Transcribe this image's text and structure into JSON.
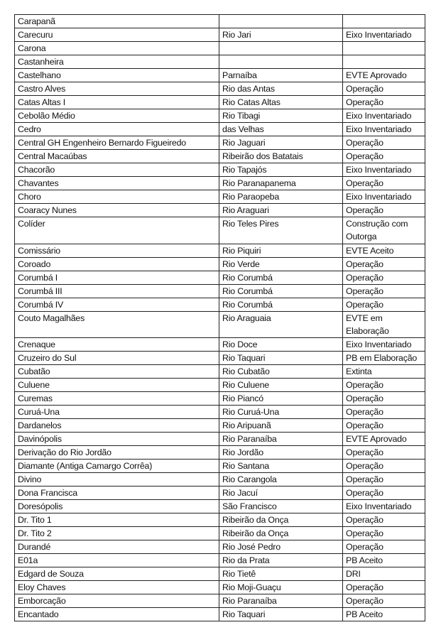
{
  "table": {
    "rows": [
      [
        "Carapanã",
        "",
        ""
      ],
      [
        "Carecuru",
        "Rio Jari",
        "Eixo Inventariado"
      ],
      [
        "Carona",
        "",
        ""
      ],
      [
        "Castanheira",
        "",
        ""
      ],
      [
        "Castelhano",
        "Parnaíba",
        "EVTE Aprovado"
      ],
      [
        "Castro Alves",
        "Rio das Antas",
        "Operação"
      ],
      [
        "Catas Altas I",
        "Rio Catas Altas",
        "Operação"
      ],
      [
        "Cebolão Médio",
        "Rio Tibagi",
        "Eixo Inventariado"
      ],
      [
        "Cedro",
        "das Velhas",
        "Eixo Inventariado"
      ],
      [
        "Central GH Engenheiro Bernardo Figueiredo",
        "Rio Jaguari",
        "Operação"
      ],
      [
        "Central Macaúbas",
        "Ribeirão dos Batatais",
        "Operação"
      ],
      [
        "Chacorão",
        "Rio Tapajós",
        "Eixo Inventariado"
      ],
      [
        "Chavantes",
        "Rio Paranapanema",
        "Operação"
      ],
      [
        "Choro",
        "Rio Paraopeba",
        "Eixo Inventariado"
      ],
      [
        "Coaracy Nunes",
        "Rio Araguari",
        "Operação"
      ],
      [
        "Colíder",
        "Rio Teles Pires",
        "Construção com Outorga"
      ],
      [
        "Comissário",
        "Rio Piquiri",
        "EVTE Aceito"
      ],
      [
        "Coroado",
        "Rio Verde",
        "Operação"
      ],
      [
        "Corumbá I",
        "Rio Corumbá",
        "Operação"
      ],
      [
        "Corumbá III",
        "Rio Corumbá",
        "Operação"
      ],
      [
        "Corumbá IV",
        "Rio Corumbá",
        "Operação"
      ],
      [
        "Couto Magalhães",
        "Rio Araguaia",
        "EVTE em Elaboração"
      ],
      [
        "Crenaque",
        "Rio Doce",
        "Eixo Inventariado"
      ],
      [
        "Cruzeiro do Sul",
        "Rio Taquari",
        "PB em Elaboração"
      ],
      [
        "Cubatão",
        "Rio Cubatão",
        "Extinta"
      ],
      [
        "Culuene",
        "Rio Culuene",
        "Operação"
      ],
      [
        "Curemas",
        "Rio Piancó",
        "Operação"
      ],
      [
        "Curuá-Una",
        "Rio Curuá-Una",
        "Operação"
      ],
      [
        "Dardanelos",
        "Rio Aripuanã",
        "Operação"
      ],
      [
        "Davinópolis",
        "Rio Paranaíba",
        "EVTE Aprovado"
      ],
      [
        "Derivação do Rio Jordão",
        "Rio Jordão",
        "Operação"
      ],
      [
        "Diamante (Antiga Camargo Corrêa)",
        "Rio Santana",
        "Operação"
      ],
      [
        "Divino",
        "Rio Carangola",
        "Operação"
      ],
      [
        "Dona Francisca",
        "Rio Jacuí",
        "Operação"
      ],
      [
        "Doresópolis",
        "São Francisco",
        "Eixo Inventariado"
      ],
      [
        "Dr. Tito 1",
        "Ribeirão da Onça",
        "Operação"
      ],
      [
        "Dr. Tito 2",
        "Ribeirão da Onça",
        "Operação"
      ],
      [
        "Durandé",
        "Rio José Pedro",
        "Operação"
      ],
      [
        "E01a",
        "Rio da Prata",
        "PB Aceito"
      ],
      [
        "Edgard de Souza",
        "Rio Tietê",
        "DRI"
      ],
      [
        "Eloy Chaves",
        "Rio Moji-Guaçu",
        "Operação"
      ],
      [
        "Emborcação",
        "Rio Paranaíba",
        "Operação"
      ],
      [
        "Encantado",
        "Rio Taquari",
        "PB Aceito"
      ]
    ]
  }
}
